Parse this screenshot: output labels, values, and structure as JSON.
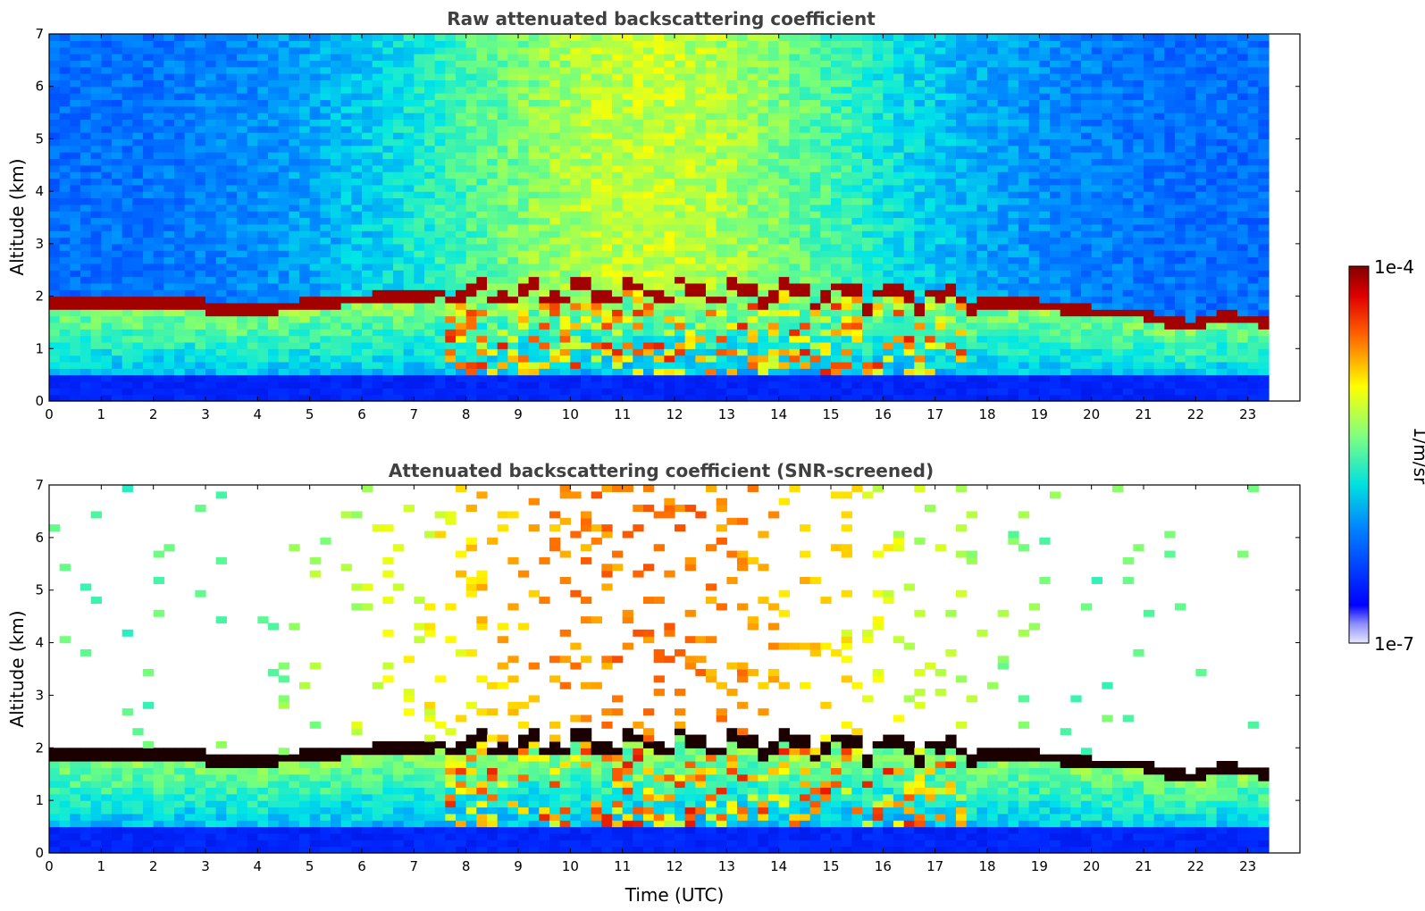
{
  "chart_data": [
    {
      "type": "heatmap",
      "title": "Raw attenuated backscattering coefficient",
      "xlabel": "",
      "ylabel": "Altitude (km)",
      "xlim": [
        0,
        24
      ],
      "ylim": [
        0,
        7
      ],
      "data_x_end": 23.4,
      "x_ticks": [
        0,
        1,
        2,
        3,
        4,
        5,
        6,
        7,
        8,
        9,
        10,
        11,
        12,
        13,
        14,
        15,
        16,
        17,
        18,
        19,
        20,
        21,
        22,
        23
      ],
      "y_ticks": [
        0,
        1,
        2,
        3,
        4,
        5,
        6,
        7
      ],
      "grid": false,
      "cloud_base_km": [
        {
          "x": 0,
          "y": 1.85
        },
        {
          "x": 2.8,
          "y": 1.9
        },
        {
          "x": 3.0,
          "y": 1.78
        },
        {
          "x": 4.0,
          "y": 1.75
        },
        {
          "x": 5.0,
          "y": 1.85
        },
        {
          "x": 6.0,
          "y": 1.95
        },
        {
          "x": 7.5,
          "y": 2.05
        },
        {
          "x": 9.0,
          "y": 2.05
        },
        {
          "x": 11.5,
          "y": 2.1
        },
        {
          "x": 15.0,
          "y": 2.05
        },
        {
          "x": 17.0,
          "y": 2.0
        },
        {
          "x": 18.0,
          "y": 1.9
        },
        {
          "x": 19.0,
          "y": 1.85
        },
        {
          "x": 20.0,
          "y": 1.7
        },
        {
          "x": 21.0,
          "y": 1.7
        },
        {
          "x": 21.5,
          "y": 1.5
        },
        {
          "x": 22.0,
          "y": 1.45
        },
        {
          "x": 22.5,
          "y": 1.65
        },
        {
          "x": 23.4,
          "y": 1.5
        }
      ]
    },
    {
      "type": "heatmap",
      "title": "Attenuated backscattering coefficient (SNR-screened)",
      "xlabel": "Time (UTC)",
      "ylabel": "Altitude (km)",
      "xlim": [
        0,
        24
      ],
      "ylim": [
        0,
        7
      ],
      "data_x_end": 23.4,
      "x_ticks": [
        0,
        1,
        2,
        3,
        4,
        5,
        6,
        7,
        8,
        9,
        10,
        11,
        12,
        13,
        14,
        15,
        16,
        17,
        18,
        19,
        20,
        21,
        22,
        23
      ],
      "y_ticks": [
        0,
        1,
        2,
        3,
        4,
        5,
        6,
        7
      ],
      "grid": false
    }
  ],
  "colorbar": {
    "label": "1/m/sr",
    "max_label": "1e-4",
    "min_label": "1e-7",
    "scale": "log",
    "colormap": "jet"
  }
}
